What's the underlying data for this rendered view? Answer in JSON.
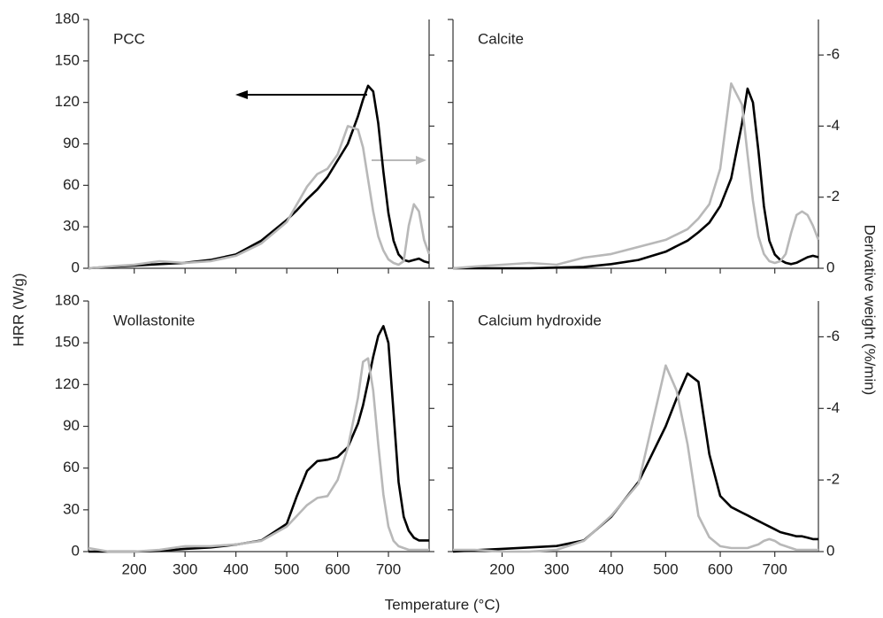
{
  "axis_titles": {
    "x": "Temperature (°C)",
    "y": "HRR (W/g)",
    "y2": "Derivative weight (%/min)"
  },
  "chart_data": [
    {
      "type": "line",
      "title": "PCC",
      "x": [
        110,
        150,
        200,
        250,
        300,
        350,
        400,
        450,
        500,
        520,
        540,
        560,
        580,
        600,
        620,
        640,
        650,
        660,
        670,
        680,
        690,
        700,
        710,
        720,
        730,
        740,
        750,
        760,
        770,
        780
      ],
      "series": [
        {
          "color": "#000000",
          "values": [
            0,
            1,
            2,
            3,
            4,
            6,
            10,
            20,
            35,
            42,
            50,
            57,
            66,
            78,
            90,
            110,
            122,
            132,
            128,
            105,
            70,
            40,
            20,
            10,
            6,
            5,
            6,
            7,
            5,
            4
          ]
        },
        {
          "color": "#b8b8b8",
          "axis": "y2",
          "values": [
            0,
            -0.05,
            -0.1,
            -0.2,
            -0.15,
            -0.2,
            -0.35,
            -0.7,
            -1.3,
            -1.8,
            -2.3,
            -2.65,
            -2.8,
            -3.2,
            -4.0,
            -3.9,
            -3.4,
            -2.5,
            -1.6,
            -0.9,
            -0.5,
            -0.25,
            -0.15,
            -0.1,
            -0.2,
            -1.2,
            -1.8,
            -1.6,
            -0.8,
            -0.4
          ]
        }
      ],
      "xlim": [
        110,
        780
      ],
      "xticks": [
        200,
        300,
        400,
        500,
        600,
        700
      ],
      "ylim": [
        0,
        180
      ],
      "yticks": [
        0,
        30,
        60,
        90,
        120,
        150,
        180
      ],
      "y2lim": [
        0,
        -7
      ],
      "y2ticks": [
        0,
        -2,
        -4,
        -6
      ],
      "show_xtick_labels": false,
      "show_ytick_labels": true,
      "show_y2tick_labels": false
    },
    {
      "type": "line",
      "title": "Calcite",
      "x": [
        110,
        150,
        200,
        250,
        300,
        350,
        400,
        450,
        500,
        520,
        540,
        560,
        580,
        600,
        620,
        640,
        650,
        660,
        670,
        680,
        690,
        700,
        710,
        720,
        730,
        740,
        750,
        760,
        770,
        780
      ],
      "series": [
        {
          "color": "#000000",
          "values": [
            0,
            0,
            0,
            0,
            0.5,
            1,
            3,
            6,
            12,
            16,
            20,
            26,
            33,
            45,
            65,
            105,
            130,
            120,
            85,
            45,
            20,
            10,
            6,
            4,
            3,
            4,
            6,
            8,
            9,
            8
          ]
        },
        {
          "color": "#b8b8b8",
          "axis": "y2",
          "values": [
            0,
            -0.05,
            -0.1,
            -0.15,
            -0.1,
            -0.3,
            -0.4,
            -0.6,
            -0.8,
            -0.95,
            -1.1,
            -1.4,
            -1.8,
            -2.8,
            -5.2,
            -4.6,
            -3.2,
            -1.9,
            -0.9,
            -0.4,
            -0.2,
            -0.15,
            -0.2,
            -0.4,
            -1.0,
            -1.5,
            -1.6,
            -1.5,
            -1.2,
            -0.8
          ]
        }
      ],
      "xlim": [
        110,
        780
      ],
      "xticks": [
        200,
        300,
        400,
        500,
        600,
        700
      ],
      "ylim": [
        0,
        180
      ],
      "yticks": [
        0,
        30,
        60,
        90,
        120,
        150,
        180
      ],
      "y2lim": [
        0,
        -7
      ],
      "y2ticks": [
        0,
        -2,
        -4,
        -6
      ],
      "show_xtick_labels": false,
      "show_ytick_labels": false,
      "show_y2tick_labels": true
    },
    {
      "type": "line",
      "title": "Wollastonite",
      "x": [
        110,
        150,
        200,
        250,
        300,
        350,
        400,
        450,
        500,
        520,
        540,
        560,
        580,
        600,
        620,
        640,
        650,
        660,
        670,
        680,
        690,
        700,
        710,
        720,
        730,
        740,
        750,
        760,
        770,
        780
      ],
      "series": [
        {
          "color": "#000000",
          "values": [
            0,
            0,
            0,
            0.5,
            2,
            3,
            5,
            8,
            20,
            40,
            58,
            65,
            66,
            68,
            75,
            92,
            105,
            122,
            140,
            155,
            162,
            150,
            100,
            50,
            25,
            15,
            10,
            8,
            8,
            8
          ]
        },
        {
          "color": "#b8b8b8",
          "axis": "y2",
          "values": [
            -0.1,
            0,
            0,
            -0.05,
            -0.15,
            -0.15,
            -0.2,
            -0.3,
            -0.7,
            -1.0,
            -1.3,
            -1.5,
            -1.55,
            -2.0,
            -2.9,
            -4.3,
            -5.3,
            -5.4,
            -4.5,
            -3.0,
            -1.6,
            -0.7,
            -0.3,
            -0.15,
            -0.1,
            -0.05,
            -0.05,
            -0.05,
            -0.05,
            -0.05
          ]
        }
      ],
      "xlim": [
        110,
        780
      ],
      "xticks": [
        200,
        300,
        400,
        500,
        600,
        700
      ],
      "ylim": [
        0,
        180
      ],
      "yticks": [
        0,
        30,
        60,
        90,
        120,
        150,
        180
      ],
      "y2lim": [
        0,
        -7
      ],
      "y2ticks": [
        0,
        -2,
        -4,
        -6
      ],
      "show_xtick_labels": true,
      "show_ytick_labels": true,
      "show_y2tick_labels": false
    },
    {
      "type": "line",
      "title": "Calcium hydroxide",
      "x": [
        110,
        150,
        200,
        250,
        300,
        350,
        400,
        450,
        500,
        520,
        540,
        560,
        580,
        600,
        620,
        640,
        650,
        660,
        670,
        680,
        690,
        700,
        710,
        720,
        730,
        740,
        750,
        760,
        770,
        780
      ],
      "series": [
        {
          "color": "#000000",
          "values": [
            0,
            1,
            2,
            3,
            4,
            8,
            25,
            50,
            90,
            110,
            128,
            122,
            70,
            40,
            32,
            28,
            26,
            24,
            22,
            20,
            18,
            16,
            14,
            13,
            12,
            11,
            11,
            10,
            9,
            9
          ]
        },
        {
          "color": "#b8b8b8",
          "axis": "y2",
          "values": [
            -0.05,
            -0.05,
            0,
            0,
            -0.05,
            -0.3,
            -1.0,
            -1.9,
            -5.2,
            -4.5,
            -3.0,
            -1.0,
            -0.4,
            -0.15,
            -0.1,
            -0.1,
            -0.1,
            -0.15,
            -0.2,
            -0.3,
            -0.35,
            -0.3,
            -0.2,
            -0.15,
            -0.1,
            -0.05,
            -0.05,
            -0.05,
            -0.05,
            -0.05
          ]
        }
      ],
      "xlim": [
        110,
        780
      ],
      "xticks": [
        200,
        300,
        400,
        500,
        600,
        700
      ],
      "ylim": [
        0,
        180
      ],
      "yticks": [
        0,
        30,
        60,
        90,
        120,
        150,
        180
      ],
      "y2lim": [
        0,
        -7
      ],
      "y2ticks": [
        0,
        -2,
        -4,
        -6
      ],
      "show_xtick_labels": true,
      "show_ytick_labels": false,
      "show_y2tick_labels": true
    }
  ]
}
